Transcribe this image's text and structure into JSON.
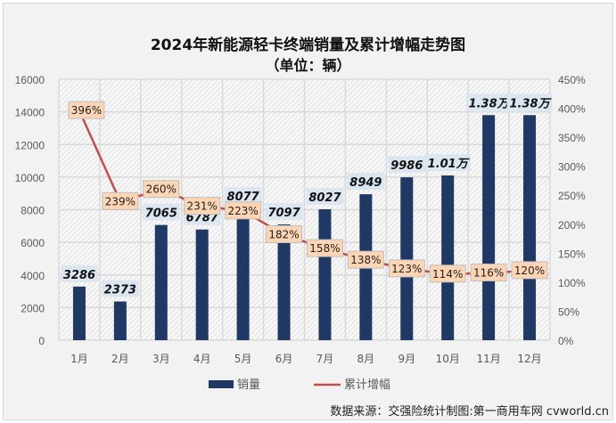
{
  "chart_data": {
    "type": "bar+line",
    "title": "2024年新能源轻卡终端销量及累计增幅走势图",
    "subtitle": "（单位：辆）",
    "categories": [
      "1月",
      "2月",
      "3月",
      "4月",
      "5月",
      "6月",
      "7月",
      "8月",
      "9月",
      "10月",
      "11月",
      "12月"
    ],
    "series": [
      {
        "name": "销量",
        "type": "bar",
        "axis": "left",
        "color": "#1f3864",
        "values": [
          3286,
          2373,
          7065,
          6787,
          8077,
          7097,
          8027,
          8949,
          9986,
          10100,
          13800,
          13800
        ],
        "labels": [
          "3286",
          "2373",
          "7065",
          "6787",
          "8077",
          "7097",
          "8027",
          "8949",
          "9986",
          "1.01万",
          "1.38万",
          "1.38万"
        ]
      },
      {
        "name": "累计增幅",
        "type": "line",
        "axis": "right",
        "color": "#c0504d",
        "values": [
          396,
          239,
          260,
          231,
          223,
          182,
          158,
          138,
          123,
          114,
          116,
          120
        ],
        "labels": [
          "396%",
          "239%",
          "260%",
          "231%",
          "223%",
          "182%",
          "158%",
          "138%",
          "123%",
          "114%",
          "116%",
          "120%"
        ]
      }
    ],
    "left_axis": {
      "range": [
        0,
        16000
      ],
      "ticks": [
        "0",
        "2000",
        "4000",
        "6000",
        "8000",
        "10000",
        "12000",
        "14000",
        "16000"
      ]
    },
    "right_axis": {
      "range": [
        0,
        450
      ],
      "ticks": [
        "0%",
        "50%",
        "100%",
        "150%",
        "200%",
        "250%",
        "300%",
        "350%",
        "400%",
        "450%"
      ]
    },
    "grid": true,
    "legend": "bottom"
  },
  "source": "数据来源：交强险统计制图:第一商用车网 cvworld.cn"
}
